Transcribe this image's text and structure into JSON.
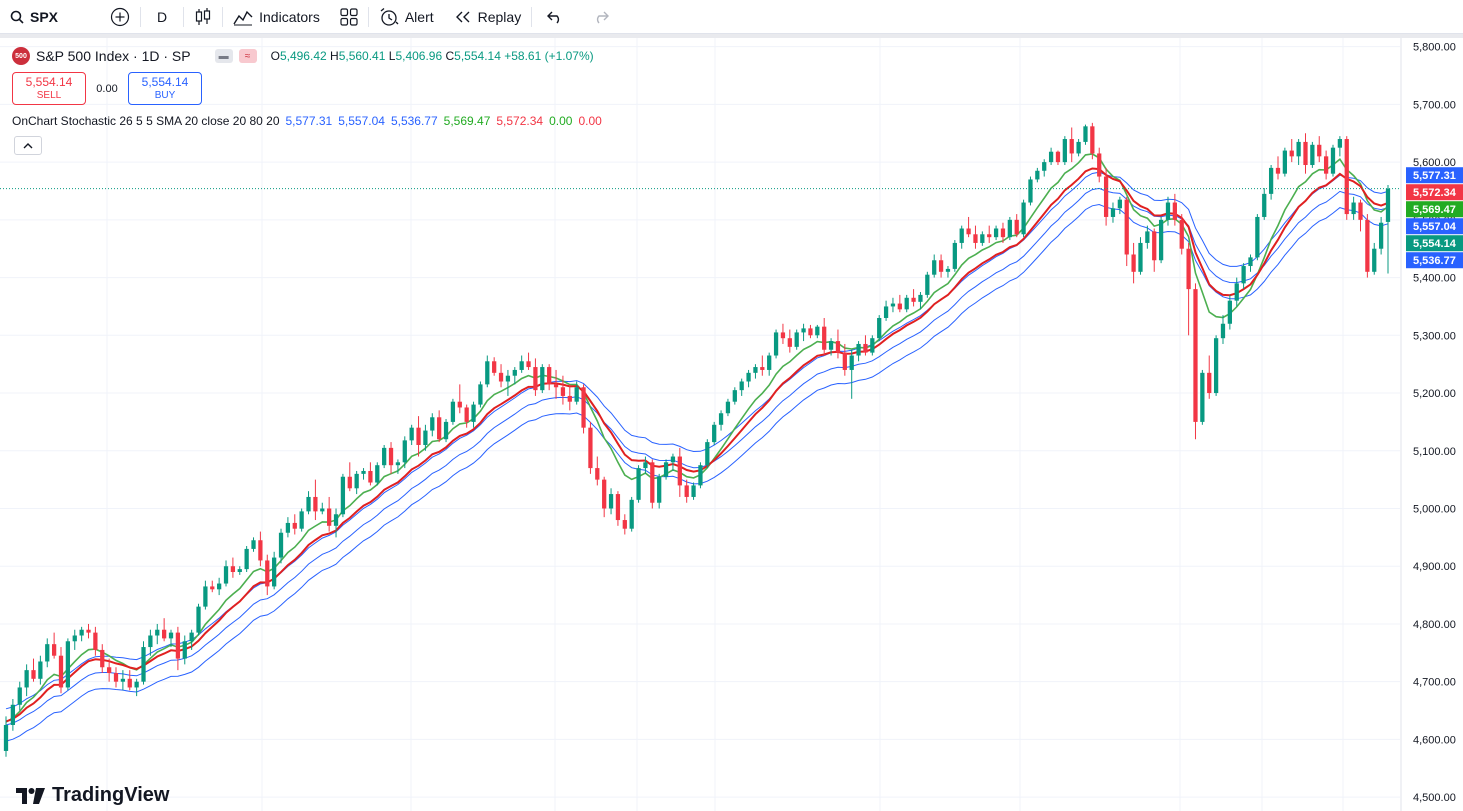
{
  "toolbar": {
    "symbol": "SPX",
    "interval": "D",
    "indicators_label": "Indicators",
    "alert_label": "Alert",
    "replay_label": "Replay"
  },
  "legend": {
    "logo_text": "500",
    "title": "S&P 500 Index · 1D · SP",
    "open_label": "O",
    "open": "5,496.42",
    "high_label": "H",
    "high": "5,560.41",
    "low_label": "L",
    "low": "5,406.96",
    "close_label": "C",
    "close": "5,554.14",
    "change": "+58.61 (+1.07%)"
  },
  "trade": {
    "sell_price": "5,554.14",
    "sell_label": "SELL",
    "spread": "0.00",
    "buy_price": "5,554.14",
    "buy_label": "BUY"
  },
  "indicator": {
    "name": "OnChart Stochastic 26 5 5 SMA 20 close 20 80 20",
    "v1": "5,577.31",
    "v2": "5,557.04",
    "v3": "5,536.77",
    "v4": "5,569.47",
    "v5": "5,572.34",
    "v6": "0.00",
    "v7": "0.00"
  },
  "watermark": "TradingView",
  "colors": {
    "up": "#089981",
    "down": "#f23645",
    "band": "#2962ff",
    "stoch_k": "#4caf50",
    "stoch_d": "#e02020",
    "grid": "#f0f3fa"
  },
  "chart_data": {
    "type": "candlestick",
    "ylim": [
      4476,
      5815
    ],
    "y_ticks": [
      "4,500.00",
      "4,600.00",
      "4,700.00",
      "4,800.00",
      "4,900.00",
      "5,000.00",
      "5,100.00",
      "5,200.00",
      "5,300.00",
      "5,400.00",
      "5,500.00",
      "5,600.00",
      "5,700.00",
      "5,800.00"
    ],
    "y_tick_values": [
      4500,
      4600,
      4700,
      4800,
      4900,
      5000,
      5100,
      5200,
      5300,
      5400,
      5500,
      5600,
      5700,
      5800
    ],
    "last_price": 5554.14,
    "price_labels": [
      {
        "value": 5577.31,
        "text": "5,577.31",
        "color": "#2962ff"
      },
      {
        "value": 5572.34,
        "text": "5,572.34",
        "color": "#f23645"
      },
      {
        "value": 5569.47,
        "text": "5,569.47",
        "color": "#22ab22"
      },
      {
        "value": 5557.04,
        "text": "5,557.04",
        "color": "#2962ff"
      },
      {
        "value": 5554.14,
        "text": "5,554.14",
        "color": "#089981"
      },
      {
        "value": 5536.77,
        "text": "5,536.77",
        "color": "#2962ff"
      }
    ],
    "candles": [
      [
        4580,
        4640,
        4570,
        4625
      ],
      [
        4625,
        4670,
        4615,
        4660
      ],
      [
        4660,
        4700,
        4650,
        4690
      ],
      [
        4690,
        4730,
        4675,
        4720
      ],
      [
        4720,
        4740,
        4700,
        4705
      ],
      [
        4705,
        4745,
        4695,
        4735
      ],
      [
        4735,
        4775,
        4725,
        4765
      ],
      [
        4765,
        4785,
        4740,
        4745
      ],
      [
        4745,
        4760,
        4680,
        4690
      ],
      [
        4690,
        4775,
        4685,
        4770
      ],
      [
        4770,
        4790,
        4755,
        4780
      ],
      [
        4780,
        4795,
        4770,
        4790
      ],
      [
        4790,
        4800,
        4775,
        4785
      ],
      [
        4785,
        4795,
        4745,
        4755
      ],
      [
        4755,
        4765,
        4715,
        4725
      ],
      [
        4725,
        4740,
        4700,
        4715
      ],
      [
        4715,
        4725,
        4690,
        4700
      ],
      [
        4700,
        4720,
        4685,
        4705
      ],
      [
        4705,
        4720,
        4685,
        4690
      ],
      [
        4690,
        4705,
        4675,
        4700
      ],
      [
        4700,
        4770,
        4695,
        4760
      ],
      [
        4760,
        4790,
        4745,
        4780
      ],
      [
        4780,
        4800,
        4765,
        4790
      ],
      [
        4790,
        4810,
        4770,
        4775
      ],
      [
        4775,
        4790,
        4760,
        4785
      ],
      [
        4785,
        4795,
        4720,
        4740
      ],
      [
        4740,
        4780,
        4730,
        4770
      ],
      [
        4770,
        4790,
        4755,
        4785
      ],
      [
        4785,
        4835,
        4780,
        4830
      ],
      [
        4830,
        4875,
        4825,
        4865
      ],
      [
        4865,
        4875,
        4855,
        4860
      ],
      [
        4860,
        4880,
        4850,
        4870
      ],
      [
        4870,
        4910,
        4865,
        4900
      ],
      [
        4900,
        4915,
        4880,
        4890
      ],
      [
        4890,
        4900,
        4885,
        4895
      ],
      [
        4895,
        4935,
        4890,
        4930
      ],
      [
        4930,
        4950,
        4925,
        4945
      ],
      [
        4945,
        4960,
        4900,
        4910
      ],
      [
        4910,
        4920,
        4850,
        4865
      ],
      [
        4865,
        4925,
        4860,
        4915
      ],
      [
        4915,
        4965,
        4905,
        4958
      ],
      [
        4958,
        4985,
        4950,
        4975
      ],
      [
        4975,
        4990,
        4955,
        4965
      ],
      [
        4965,
        5000,
        4960,
        4995
      ],
      [
        4995,
        5030,
        4990,
        5020
      ],
      [
        5020,
        5050,
        4980,
        4995
      ],
      [
        4995,
        5010,
        4990,
        5000
      ],
      [
        5000,
        5020,
        4960,
        4970
      ],
      [
        4970,
        5000,
        4950,
        4990
      ],
      [
        4990,
        5060,
        4985,
        5055
      ],
      [
        5055,
        5080,
        5030,
        5035
      ],
      [
        5035,
        5065,
        5025,
        5060
      ],
      [
        5060,
        5070,
        5050,
        5065
      ],
      [
        5065,
        5080,
        5040,
        5045
      ],
      [
        5045,
        5080,
        5040,
        5075
      ],
      [
        5075,
        5110,
        5070,
        5105
      ],
      [
        5105,
        5115,
        5060,
        5075
      ],
      [
        5075,
        5085,
        5060,
        5080
      ],
      [
        5080,
        5125,
        5070,
        5118
      ],
      [
        5118,
        5145,
        5110,
        5140
      ],
      [
        5140,
        5160,
        5090,
        5110
      ],
      [
        5110,
        5145,
        5100,
        5135
      ],
      [
        5135,
        5165,
        5125,
        5158
      ],
      [
        5158,
        5170,
        5115,
        5120
      ],
      [
        5120,
        5155,
        5115,
        5150
      ],
      [
        5150,
        5190,
        5145,
        5185
      ],
      [
        5185,
        5215,
        5165,
        5175
      ],
      [
        5175,
        5180,
        5140,
        5150
      ],
      [
        5150,
        5185,
        5140,
        5180
      ],
      [
        5180,
        5220,
        5175,
        5215
      ],
      [
        5215,
        5265,
        5210,
        5255
      ],
      [
        5255,
        5262,
        5230,
        5235
      ],
      [
        5235,
        5250,
        5210,
        5220
      ],
      [
        5220,
        5240,
        5195,
        5230
      ],
      [
        5230,
        5245,
        5215,
        5240
      ],
      [
        5240,
        5265,
        5235,
        5255
      ],
      [
        5255,
        5270,
        5240,
        5245
      ],
      [
        5245,
        5260,
        5195,
        5205
      ],
      [
        5205,
        5250,
        5200,
        5245
      ],
      [
        5245,
        5250,
        5205,
        5215
      ],
      [
        5215,
        5240,
        5190,
        5210
      ],
      [
        5210,
        5230,
        5180,
        5195
      ],
      [
        5195,
        5215,
        5170,
        5185
      ],
      [
        5185,
        5220,
        5180,
        5210
      ],
      [
        5210,
        5215,
        5130,
        5140
      ],
      [
        5140,
        5150,
        5060,
        5070
      ],
      [
        5070,
        5090,
        5040,
        5050
      ],
      [
        5050,
        5055,
        4985,
        5000
      ],
      [
        5000,
        5035,
        4990,
        5025
      ],
      [
        5025,
        5030,
        4970,
        4980
      ],
      [
        4980,
        4990,
        4955,
        4965
      ],
      [
        4965,
        5020,
        4960,
        5015
      ],
      [
        5015,
        5075,
        5010,
        5070
      ],
      [
        5070,
        5090,
        5060,
        5080
      ],
      [
        5080,
        5085,
        5000,
        5010
      ],
      [
        5010,
        5060,
        5000,
        5055
      ],
      [
        5055,
        5085,
        5050,
        5080
      ],
      [
        5080,
        5095,
        5065,
        5090
      ],
      [
        5090,
        5105,
        5020,
        5040
      ],
      [
        5040,
        5050,
        5010,
        5020
      ],
      [
        5020,
        5045,
        5015,
        5040
      ],
      [
        5040,
        5080,
        5035,
        5075
      ],
      [
        5075,
        5120,
        5070,
        5115
      ],
      [
        5115,
        5150,
        5110,
        5145
      ],
      [
        5145,
        5170,
        5135,
        5165
      ],
      [
        5165,
        5190,
        5160,
        5185
      ],
      [
        5185,
        5210,
        5180,
        5205
      ],
      [
        5205,
        5225,
        5195,
        5220
      ],
      [
        5220,
        5240,
        5210,
        5235
      ],
      [
        5235,
        5250,
        5225,
        5245
      ],
      [
        5245,
        5265,
        5230,
        5240
      ],
      [
        5240,
        5270,
        5230,
        5265
      ],
      [
        5265,
        5310,
        5260,
        5305
      ],
      [
        5305,
        5320,
        5285,
        5295
      ],
      [
        5295,
        5310,
        5270,
        5280
      ],
      [
        5280,
        5310,
        5275,
        5305
      ],
      [
        5305,
        5320,
        5290,
        5312
      ],
      [
        5312,
        5318,
        5295,
        5300
      ],
      [
        5300,
        5318,
        5295,
        5315
      ],
      [
        5315,
        5330,
        5265,
        5275
      ],
      [
        5275,
        5295,
        5265,
        5290
      ],
      [
        5290,
        5310,
        5260,
        5270
      ],
      [
        5270,
        5285,
        5230,
        5240
      ],
      [
        5240,
        5275,
        5190,
        5265
      ],
      [
        5265,
        5290,
        5255,
        5285
      ],
      [
        5285,
        5300,
        5265,
        5270
      ],
      [
        5270,
        5300,
        5265,
        5295
      ],
      [
        5295,
        5335,
        5290,
        5330
      ],
      [
        5330,
        5360,
        5325,
        5350
      ],
      [
        5350,
        5365,
        5340,
        5355
      ],
      [
        5355,
        5370,
        5340,
        5345
      ],
      [
        5345,
        5370,
        5340,
        5365
      ],
      [
        5365,
        5380,
        5350,
        5358
      ],
      [
        5358,
        5375,
        5345,
        5370
      ],
      [
        5370,
        5410,
        5365,
        5405
      ],
      [
        5405,
        5440,
        5400,
        5430
      ],
      [
        5430,
        5440,
        5400,
        5410
      ],
      [
        5410,
        5420,
        5400,
        5415
      ],
      [
        5415,
        5465,
        5410,
        5460
      ],
      [
        5460,
        5490,
        5450,
        5485
      ],
      [
        5485,
        5505,
        5470,
        5475
      ],
      [
        5475,
        5490,
        5450,
        5460
      ],
      [
        5460,
        5480,
        5455,
        5475
      ],
      [
        5475,
        5490,
        5460,
        5470
      ],
      [
        5470,
        5490,
        5465,
        5485
      ],
      [
        5485,
        5495,
        5460,
        5470
      ],
      [
        5470,
        5505,
        5465,
        5500
      ],
      [
        5500,
        5510,
        5470,
        5475
      ],
      [
        5475,
        5535,
        5470,
        5530
      ],
      [
        5530,
        5575,
        5525,
        5570
      ],
      [
        5570,
        5590,
        5565,
        5585
      ],
      [
        5585,
        5605,
        5575,
        5600
      ],
      [
        5600,
        5625,
        5595,
        5618
      ],
      [
        5618,
        5620,
        5595,
        5600
      ],
      [
        5600,
        5645,
        5595,
        5640
      ],
      [
        5640,
        5660,
        5600,
        5615
      ],
      [
        5615,
        5640,
        5610,
        5635
      ],
      [
        5635,
        5665,
        5630,
        5662
      ],
      [
        5662,
        5668,
        5605,
        5615
      ],
      [
        5615,
        5625,
        5565,
        5575
      ],
      [
        5575,
        5590,
        5490,
        5505
      ],
      [
        5505,
        5530,
        5495,
        5520
      ],
      [
        5520,
        5540,
        5510,
        5535
      ],
      [
        5535,
        5540,
        5420,
        5440
      ],
      [
        5440,
        5460,
        5390,
        5410
      ],
      [
        5410,
        5470,
        5405,
        5460
      ],
      [
        5460,
        5490,
        5450,
        5480
      ],
      [
        5480,
        5485,
        5410,
        5430
      ],
      [
        5430,
        5505,
        5425,
        5500
      ],
      [
        5500,
        5540,
        5490,
        5530
      ],
      [
        5530,
        5545,
        5490,
        5500
      ],
      [
        5500,
        5510,
        5440,
        5450
      ],
      [
        5450,
        5460,
        5300,
        5380
      ],
      [
        5380,
        5390,
        5120,
        5150
      ],
      [
        5150,
        5240,
        5145,
        5235
      ],
      [
        5235,
        5265,
        5190,
        5200
      ],
      [
        5200,
        5300,
        5195,
        5295
      ],
      [
        5295,
        5335,
        5285,
        5320
      ],
      [
        5320,
        5370,
        5310,
        5360
      ],
      [
        5360,
        5400,
        5350,
        5390
      ],
      [
        5390,
        5425,
        5380,
        5420
      ],
      [
        5420,
        5440,
        5410,
        5435
      ],
      [
        5435,
        5510,
        5430,
        5505
      ],
      [
        5505,
        5555,
        5500,
        5545
      ],
      [
        5545,
        5595,
        5535,
        5590
      ],
      [
        5590,
        5610,
        5570,
        5580
      ],
      [
        5580,
        5625,
        5575,
        5620
      ],
      [
        5620,
        5640,
        5600,
        5610
      ],
      [
        5610,
        5640,
        5595,
        5635
      ],
      [
        5635,
        5650,
        5580,
        5595
      ],
      [
        5595,
        5635,
        5590,
        5630
      ],
      [
        5630,
        5645,
        5600,
        5610
      ],
      [
        5610,
        5620,
        5570,
        5580
      ],
      [
        5580,
        5630,
        5575,
        5625
      ],
      [
        5625,
        5645,
        5610,
        5640
      ],
      [
        5640,
        5645,
        5500,
        5510
      ],
      [
        5510,
        5540,
        5500,
        5530
      ],
      [
        5530,
        5535,
        5480,
        5500
      ],
      [
        5500,
        5510,
        5400,
        5410
      ],
      [
        5410,
        5460,
        5405,
        5450
      ],
      [
        5450,
        5505,
        5440,
        5495
      ],
      [
        5496.42,
        5560.41,
        5406.96,
        5554.14
      ]
    ]
  }
}
